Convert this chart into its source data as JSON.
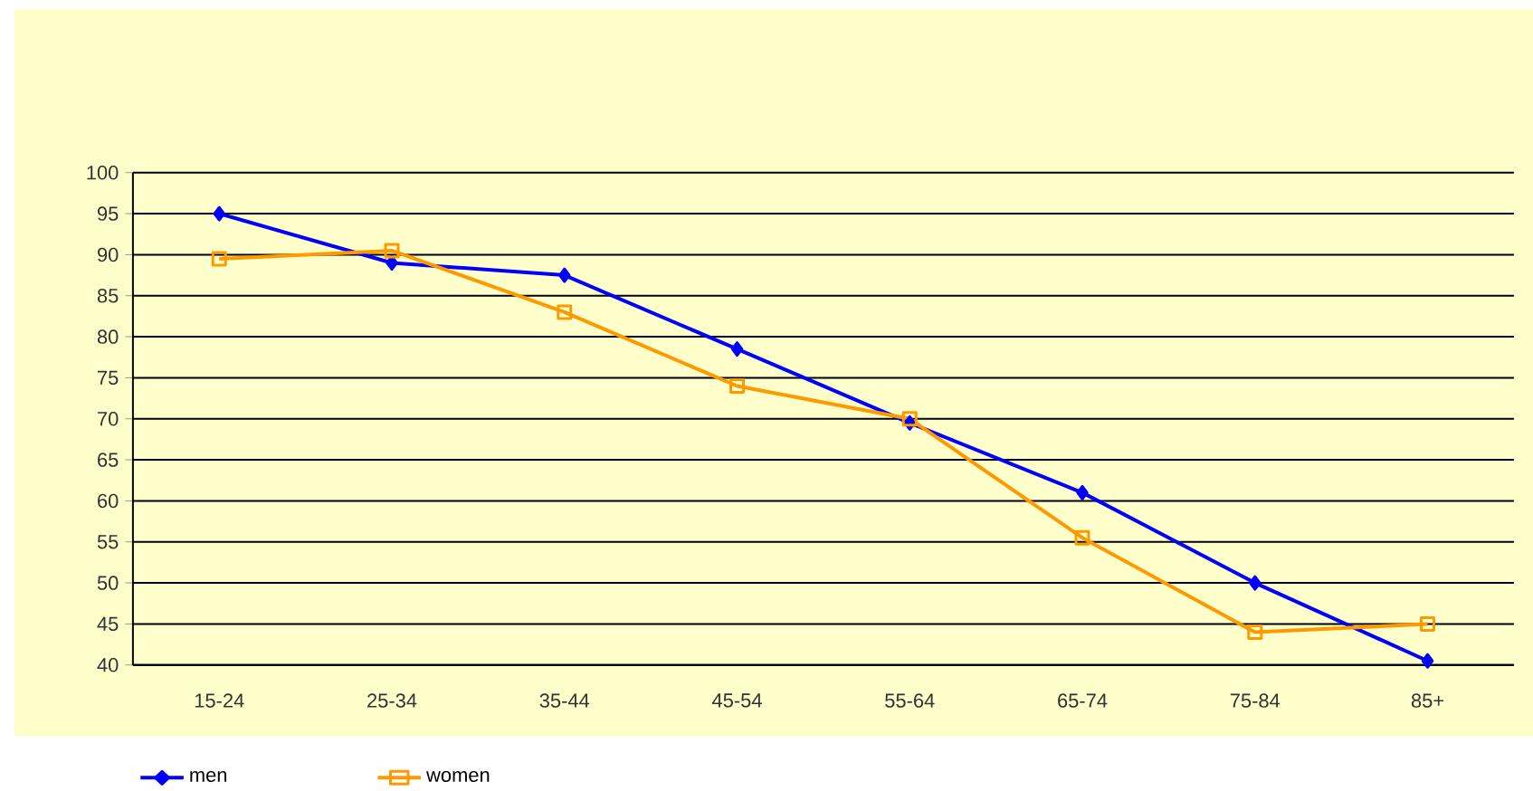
{
  "chart_data": {
    "type": "line",
    "categories": [
      "15-24",
      "25-34",
      "35-44",
      "45-54",
      "55-64",
      "65-74",
      "75-84",
      "85+"
    ],
    "series": [
      {
        "name": "men",
        "color": "#0000ff",
        "marker": "diamond",
        "values": [
          95,
          89,
          87.5,
          78.5,
          69.5,
          61,
          50,
          40.5
        ]
      },
      {
        "name": "women",
        "color": "#ff9900",
        "marker": "square",
        "values": [
          89.5,
          90.5,
          83,
          74,
          70,
          55.5,
          44,
          45
        ]
      }
    ],
    "ylim": [
      40,
      100
    ],
    "yticks": [
      40,
      45,
      50,
      55,
      60,
      65,
      70,
      75,
      80,
      85,
      90,
      95,
      100
    ],
    "grid": "y",
    "legend": "bottom left",
    "line_style": "solid"
  }
}
